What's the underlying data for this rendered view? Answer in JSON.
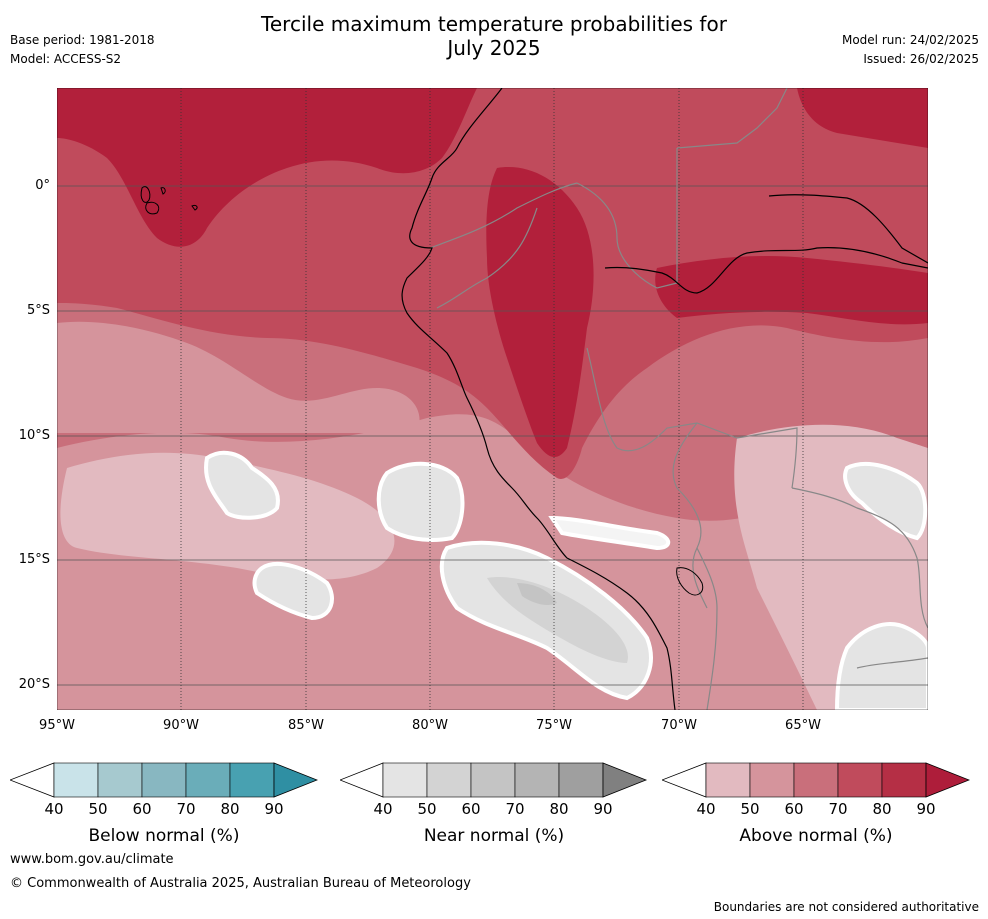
{
  "header": {
    "title_line1": "Tercile maximum temperature probabilities for",
    "title_line2": "July 2025",
    "base_period": "Base period: 1981-2018",
    "model": "Model: ACCESS-S2",
    "model_run": "Model run: 24/02/2025",
    "issued": "Issued: 26/02/2025"
  },
  "map": {
    "lat_labels": [
      "0°",
      "5°S",
      "10°S",
      "15°S",
      "20°S"
    ],
    "lon_labels": [
      "95°W",
      "90°W",
      "85°W",
      "80°W",
      "75°W",
      "70°W",
      "65°W"
    ],
    "colors": {
      "above_40": "#e2bac0",
      "above_50": "#d5949c",
      "above_60": "#c96f7b",
      "above_70": "#c04b5c",
      "above_80": "#b2203b",
      "near_40": "#e4e4e4",
      "near_50": "#d3d3d3",
      "near_60": "#c4c4c4"
    }
  },
  "colorbars": [
    {
      "title": "Below normal (%)",
      "ticks": [
        "40",
        "50",
        "60",
        "70",
        "80",
        "90"
      ],
      "colors": [
        "#c9e3e9",
        "#a6c9cf",
        "#88b7c1",
        "#6aadb9",
        "#48a1b1",
        "#2f8fa3"
      ]
    },
    {
      "title": "Near normal (%)",
      "ticks": [
        "40",
        "50",
        "60",
        "70",
        "80",
        "90"
      ],
      "colors": [
        "#e4e4e4",
        "#d3d3d3",
        "#c4c4c4",
        "#b4b4b4",
        "#9f9f9f",
        "#808080"
      ]
    },
    {
      "title": "Above normal (%)",
      "ticks": [
        "40",
        "50",
        "60",
        "70",
        "80",
        "90"
      ],
      "colors": [
        "#e2bac0",
        "#d5949c",
        "#c96f7b",
        "#c04b5c",
        "#b52f45",
        "#ae1d3a"
      ]
    }
  ],
  "footer": {
    "url": "www.bom.gov.au/climate",
    "copyright": "© Commonwealth of Australia 2025, Australian Bureau of Meteorology",
    "disclaimer": "Boundaries are not considered authoritative"
  }
}
